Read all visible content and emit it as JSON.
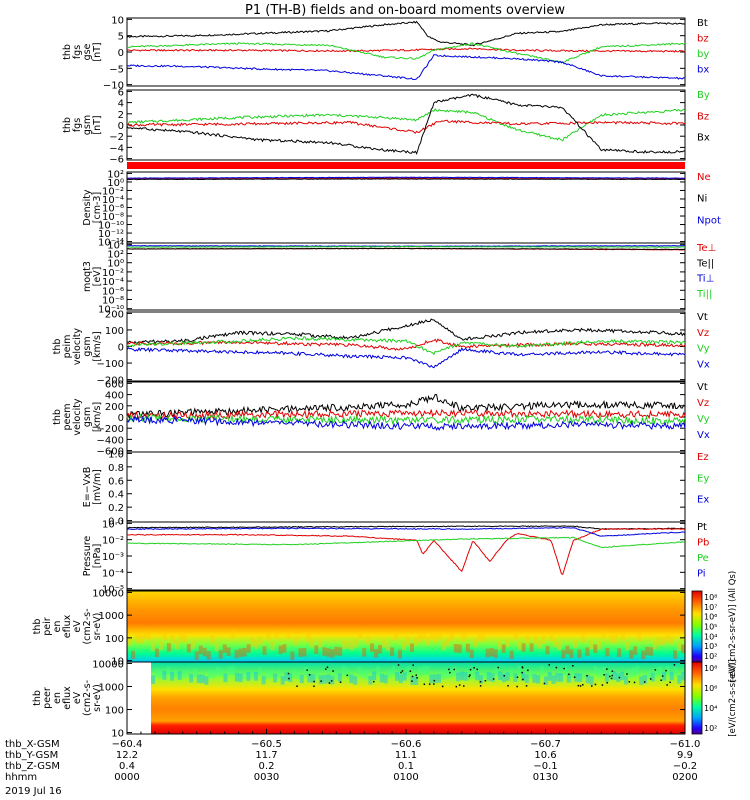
{
  "title": "P1 (TH-B) fields and on-board moments overview",
  "colors": {
    "black": "#000000",
    "red": "#e00000",
    "green": "#20d020",
    "blue": "#0000e0"
  },
  "chart_data": [
    {
      "type": "line",
      "panel": "fgs_gse",
      "ylabel_lines": [
        "thb",
        "fgs",
        "gse",
        "[nT]"
      ],
      "yticks": [
        "10",
        "5",
        "0",
        "−5",
        "−10"
      ],
      "ylim": [
        -10,
        10
      ],
      "series": [
        {
          "name": "Bt",
          "color": "black",
          "x": [
            0,
            0.12,
            0.24,
            0.36,
            0.46,
            0.52,
            0.54,
            0.56,
            0.62,
            0.7,
            0.78,
            0.85,
            0.95,
            1.0
          ],
          "y": [
            4.5,
            4.8,
            5.5,
            6.2,
            8.0,
            8.8,
            4.5,
            3.0,
            2.0,
            5.5,
            6.0,
            8.0,
            8.5,
            8.2
          ]
        },
        {
          "name": "bz",
          "color": "red",
          "x": [
            0,
            0.2,
            0.4,
            0.52,
            0.56,
            0.62,
            0.7,
            0.82,
            1.0
          ],
          "y": [
            0.5,
            0.5,
            0.3,
            0.6,
            0.8,
            1.0,
            0.5,
            0.3,
            0.2
          ]
        },
        {
          "name": "by",
          "color": "green",
          "x": [
            0,
            0.2,
            0.36,
            0.46,
            0.52,
            0.55,
            0.62,
            0.7,
            0.78,
            0.85,
            1.0
          ],
          "y": [
            1.5,
            2.5,
            2.0,
            -1.5,
            -2.0,
            0.5,
            2.5,
            -0.5,
            -3.0,
            1.5,
            2.5
          ]
        },
        {
          "name": "bx",
          "color": "blue",
          "x": [
            0,
            0.1,
            0.24,
            0.36,
            0.46,
            0.52,
            0.55,
            0.7,
            0.78,
            0.85,
            0.95,
            1.0
          ],
          "y": [
            -4.0,
            -4.2,
            -5.0,
            -5.5,
            -7.0,
            -8.0,
            -1.0,
            -2.0,
            -3.0,
            -7.0,
            -7.5,
            -7.8
          ]
        }
      ]
    },
    {
      "type": "line",
      "panel": "fgs_gsm",
      "ylabel_lines": [
        "thb",
        "fgs",
        "gsm",
        "[nT]"
      ],
      "yticks": [
        "6",
        "4",
        "2",
        "0",
        "−2",
        "−4",
        "−6"
      ],
      "ylim": [
        -7,
        7
      ],
      "series": [
        {
          "name": "By",
          "color": "green",
          "x": [
            0,
            0.2,
            0.36,
            0.46,
            0.52,
            0.55,
            0.62,
            0.7,
            0.78,
            0.85,
            1.0
          ],
          "y": [
            0.5,
            1.5,
            2.0,
            1.5,
            1.0,
            3.0,
            2.5,
            -1.0,
            -3.0,
            2.0,
            3.0
          ]
        },
        {
          "name": "Bz",
          "color": "red",
          "x": [
            0,
            0.2,
            0.4,
            0.52,
            0.56,
            0.7,
            0.85,
            1.0
          ],
          "y": [
            0.0,
            0.2,
            0.5,
            -1.5,
            0.8,
            0.2,
            0.5,
            0.3
          ]
        },
        {
          "name": "Bx",
          "color": "black",
          "x": [
            0,
            0.12,
            0.24,
            0.36,
            0.46,
            0.52,
            0.55,
            0.62,
            0.7,
            0.78,
            0.85,
            0.95,
            1.0
          ],
          "y": [
            -0.5,
            -1.5,
            -3.0,
            -3.5,
            -5.0,
            -5.5,
            4.5,
            6.0,
            4.0,
            3.5,
            -5.0,
            -5.5,
            -5.2
          ]
        }
      ]
    },
    {
      "type": "line",
      "panel": "density",
      "ylabel_lines": [
        "Density",
        "[cm-3]"
      ],
      "yticks": [
        "10²",
        "10⁰",
        "10⁻²",
        "10⁻⁴",
        "10⁻⁶",
        "10⁻⁸",
        "10⁻¹⁰",
        "10⁻¹²",
        "10⁻¹⁴"
      ],
      "ylog": true,
      "ylim": [
        -14,
        2.3
      ],
      "series": [
        {
          "name": "Ne",
          "color": "red",
          "x": [
            0,
            0.5,
            1.0
          ],
          "y": [
            0.8,
            0.9,
            0.8
          ]
        },
        {
          "name": "Ni",
          "color": "black",
          "x": [
            0,
            0.5,
            1.0
          ],
          "y": [
            0.6,
            0.7,
            0.6
          ]
        },
        {
          "name": "Npot",
          "color": "blue",
          "x": [
            0,
            0.5,
            1.0
          ],
          "y": [
            0.9,
            1.1,
            0.9
          ]
        }
      ]
    },
    {
      "type": "line",
      "panel": "temperature",
      "ylabel_lines": [
        "moqt3",
        "[eV]"
      ],
      "yticks": [
        "10⁴",
        "10²",
        "10⁰",
        "10⁻²",
        "10⁻⁴",
        "10⁻⁶",
        "10⁻⁸",
        "10⁻¹⁰"
      ],
      "ylog": true,
      "ylim": [
        -10.5,
        4.2
      ],
      "series": [
        {
          "name": "Te⊥",
          "color": "red",
          "x": [
            0,
            0.5,
            1.0
          ],
          "y": [
            2.9,
            3.0,
            2.7
          ]
        },
        {
          "name": "Te||",
          "color": "black",
          "x": [
            0,
            0.5,
            1.0
          ],
          "y": [
            2.9,
            3.0,
            2.8
          ]
        },
        {
          "name": "Ti⊥",
          "color": "blue",
          "x": [
            0,
            0.5,
            1.0
          ],
          "y": [
            3.6,
            3.5,
            3.6
          ]
        },
        {
          "name": "Ti||",
          "color": "green",
          "x": [
            0,
            0.5,
            1.0
          ],
          "y": [
            3.3,
            3.4,
            3.3
          ]
        }
      ]
    },
    {
      "type": "line",
      "panel": "peim_velocity",
      "ylabel_lines": [
        "thb",
        "peim",
        "velocity",
        "gsm",
        "[km/s]"
      ],
      "yticks": [
        "200",
        "100",
        "0",
        "−100",
        "−200"
      ],
      "ylim": [
        -250,
        250
      ],
      "series": [
        {
          "name": "Vt",
          "color": "black",
          "x": [
            0,
            0.1,
            0.2,
            0.3,
            0.4,
            0.5,
            0.55,
            0.6,
            0.7,
            0.8,
            0.9,
            1.0
          ],
          "y": [
            30,
            40,
            100,
            90,
            60,
            150,
            200,
            50,
            100,
            120,
            110,
            90
          ]
        },
        {
          "name": "Vz",
          "color": "red",
          "x": [
            0,
            0.2,
            0.4,
            0.5,
            0.55,
            0.6,
            0.8,
            1.0
          ],
          "y": [
            20,
            30,
            10,
            -20,
            50,
            0,
            20,
            10
          ]
        },
        {
          "name": "Vy",
          "color": "green",
          "x": [
            0,
            0.2,
            0.3,
            0.5,
            0.55,
            0.6,
            0.7,
            0.85,
            1.0
          ],
          "y": [
            10,
            40,
            60,
            40,
            -50,
            30,
            0,
            40,
            30
          ]
        },
        {
          "name": "Vx",
          "color": "blue",
          "x": [
            0,
            0.2,
            0.3,
            0.4,
            0.5,
            0.55,
            0.6,
            0.7,
            0.85,
            1.0
          ],
          "y": [
            -20,
            -40,
            -50,
            -70,
            -80,
            -150,
            -20,
            -60,
            -40,
            -60
          ]
        }
      ]
    },
    {
      "type": "line",
      "panel": "peem_velocity",
      "ylabel_lines": [
        "thb",
        "peem",
        "velocity",
        "gsm",
        "[km/s]"
      ],
      "yticks": [
        "600",
        "400",
        "200",
        "0",
        "−200",
        "−400",
        "−600"
      ],
      "ylim": [
        -700,
        700
      ],
      "series": [
        {
          "name": "Vt",
          "color": "black",
          "x": [
            0,
            0.2,
            0.4,
            0.5,
            0.55,
            0.6,
            0.8,
            1.0
          ],
          "y": [
            50,
            120,
            200,
            250,
            400,
            180,
            250,
            220
          ]
        },
        {
          "name": "Vz",
          "color": "red",
          "x": [
            0,
            0.3,
            0.55,
            0.8,
            1.0
          ],
          "y": [
            20,
            50,
            80,
            60,
            40
          ]
        },
        {
          "name": "Vy",
          "color": "green",
          "x": [
            0,
            0.3,
            0.55,
            0.8,
            1.0
          ],
          "y": [
            -20,
            -50,
            -60,
            -40,
            -80
          ]
        },
        {
          "name": "Vx",
          "color": "blue",
          "x": [
            0,
            0.3,
            0.55,
            0.8,
            1.0
          ],
          "y": [
            -50,
            -120,
            -200,
            -150,
            -180
          ]
        }
      ]
    },
    {
      "type": "line",
      "panel": "efield",
      "ylabel_lines": [
        "E=−VxB",
        "[mV/m]"
      ],
      "yticks": [
        "1.0",
        "0.8",
        "0.6",
        "0.4",
        "0.2",
        "0.0"
      ],
      "ylim": [
        0,
        1
      ],
      "series": [
        {
          "name": "Ez",
          "color": "red",
          "x": [],
          "y": []
        },
        {
          "name": "Ey",
          "color": "green",
          "x": [],
          "y": []
        },
        {
          "name": "Ex",
          "color": "blue",
          "x": [],
          "y": []
        }
      ]
    },
    {
      "type": "line",
      "panel": "pressure",
      "ylabel_lines": [
        "Pressure",
        "[nPa]"
      ],
      "yticks": [
        "10⁻¹",
        "10⁻²",
        "10⁻³",
        "10⁻⁴",
        "10⁻⁵"
      ],
      "ylog": true,
      "ylim": [
        -5.5,
        -0.7
      ],
      "series": [
        {
          "name": "Pt",
          "color": "black",
          "x": [
            0,
            0.3,
            0.6,
            0.8,
            0.85,
            1.0
          ],
          "y": [
            -1.1,
            -1.05,
            -1.0,
            -1.0,
            -1.2,
            -1.15
          ]
        },
        {
          "name": "Pb",
          "color": "red",
          "x": [
            0,
            0.2,
            0.4,
            0.52,
            0.53,
            0.55,
            0.6,
            0.62,
            0.65,
            0.68,
            0.7,
            0.76,
            0.78,
            0.8,
            0.85,
            1.0
          ],
          "y": [
            -1.6,
            -1.6,
            -1.7,
            -2.0,
            -3.0,
            -2.0,
            -4.2,
            -2.0,
            -3.5,
            -2.0,
            -1.5,
            -2.0,
            -4.5,
            -2.0,
            -1.2,
            -1.2
          ]
        },
        {
          "name": "Pe",
          "color": "green",
          "x": [
            0,
            0.3,
            0.6,
            0.8,
            0.85,
            1.0
          ],
          "y": [
            -2.2,
            -2.3,
            -1.9,
            -1.8,
            -2.5,
            -2.1
          ]
        },
        {
          "name": "Pi",
          "color": "blue",
          "x": [
            0,
            0.3,
            0.6,
            0.8,
            0.85,
            1.0
          ],
          "y": [
            -1.2,
            -1.15,
            -1.2,
            -1.1,
            -1.7,
            -1.4
          ]
        }
      ]
    },
    {
      "type": "heatmap",
      "panel": "peir",
      "ylabel_lines": [
        "thb",
        "peir",
        "en",
        "eflux",
        "eV",
        "(cm2-s-",
        "sr-eV)"
      ],
      "yticks": [
        "10000",
        "1000",
        "100",
        "10"
      ],
      "ylog": true,
      "ylim": [
        0.85,
        4.4
      ],
      "colorbar_label": "[eV/(cm2-s-sr-eV)] (All Qs)",
      "colorbar_ticks": [
        "10⁸",
        "10⁷",
        "10⁶",
        "10⁵",
        "10⁴",
        "10³",
        "10²"
      ]
    },
    {
      "type": "heatmap",
      "panel": "peer",
      "ylabel_lines": [
        "thb",
        "peer",
        "en",
        "eflux",
        "eV",
        "(cm2-s-",
        "sr-eV)"
      ],
      "yticks": [
        "10000",
        "1000",
        "100",
        "10"
      ],
      "ylog": true,
      "ylim": [
        0.85,
        4.4
      ],
      "colorbar_label": "[eV/(cm2-s-sr-eV)]",
      "colorbar_ticks": [
        "10⁸",
        "10⁶",
        "10⁴",
        "10²"
      ]
    }
  ],
  "x_axis": {
    "rows": [
      {
        "label": "thb_X-GSM",
        "values": [
          "−60.4",
          "−60.5",
          "−60.6",
          "−60.7",
          "−61.0"
        ]
      },
      {
        "label": "thb_Y-GSM",
        "values": [
          "12.2",
          "11.7",
          "11.1",
          "10.6",
          "9.9"
        ]
      },
      {
        "label": "thb_Z-GSM",
        "values": [
          "0.4",
          "0.2",
          "0.1",
          "−0.1",
          "−0.2"
        ]
      },
      {
        "label": "hhmm",
        "values": [
          "0000",
          "0030",
          "0100",
          "0130",
          "0200"
        ]
      }
    ],
    "date": "2019 Jul 16"
  }
}
